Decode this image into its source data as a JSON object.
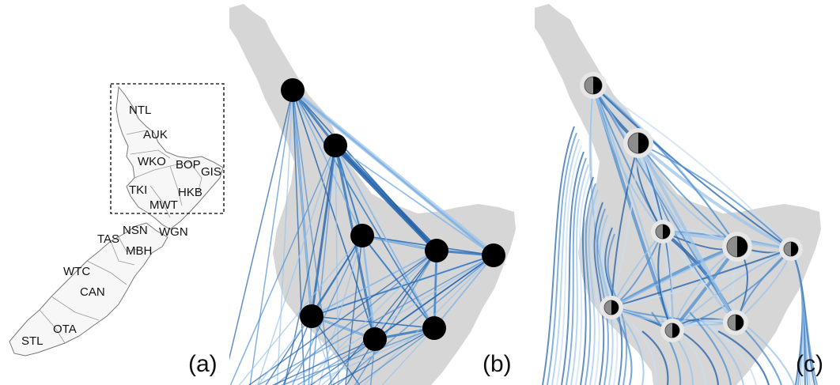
{
  "panel_a": {
    "letter": "(a)",
    "regions": [
      "NTL",
      "AUK",
      "WKO",
      "BOP",
      "GIS",
      "TKI",
      "HKB",
      "MWT",
      "NSN",
      "TAS",
      "WGN",
      "MBH",
      "WTC",
      "CAN",
      "OTA",
      "STL"
    ]
  },
  "panel_b": {
    "letter": "(b)"
  },
  "panel_c": {
    "letter": "(c)"
  },
  "colors": {
    "land": "#d4d4d4",
    "outline": "#8a8a8a",
    "node": "#000000",
    "flow_dark": "#1f5fa8",
    "flow_mid": "#4e8fd0",
    "flow_light": "#9cc4ea"
  },
  "nodes": [
    "NTL",
    "AUK",
    "WKO",
    "BOP",
    "GIS",
    "TKI",
    "MWT",
    "WGN",
    "HKB"
  ]
}
